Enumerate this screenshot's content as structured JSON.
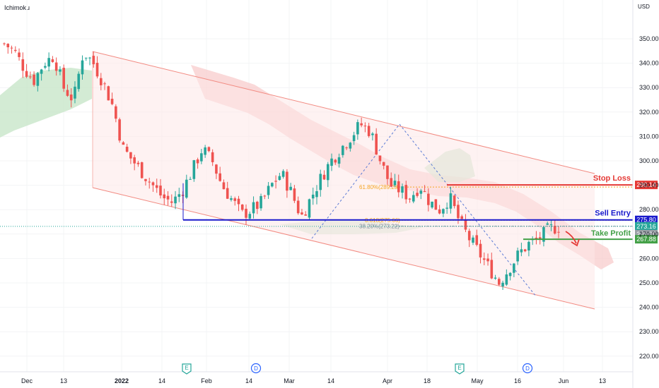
{
  "indicator_title": "Ichimoku",
  "currency": "USD",
  "chart_data": {
    "type": "candlestick",
    "title": "",
    "y_axis": {
      "ticks": [
        350,
        340,
        330,
        320,
        310,
        300,
        290,
        280,
        270,
        260,
        250,
        240,
        230,
        220
      ],
      "unit": "USD"
    },
    "x_axis": {
      "tick_labels": [
        "Dec",
        "13",
        "2022",
        "14",
        "Feb",
        "14",
        "Mar",
        "14",
        "Apr",
        "18",
        "May",
        "16",
        "Jun",
        "13"
      ]
    },
    "levels": {
      "stop_loss": {
        "label": "Stop Loss",
        "value": 290.14,
        "price_text": "290.14",
        "color": "#e53935"
      },
      "sell_entry": {
        "label": "Sell Entry",
        "value": 275.8,
        "price_text": "275.80",
        "color": "#1a1acc"
      },
      "take_profit": {
        "label": "Take Profit",
        "value": 267.88,
        "price_text": "267.88",
        "color": "#43a047"
      },
      "current_price": {
        "value": 273.16,
        "price_text": "273.16",
        "color": "#26a69a"
      },
      "price_grey": {
        "price_text": "270.00"
      }
    },
    "fibonacci": [
      {
        "label": "61.80%(289.28)",
        "value": 289.28
      },
      {
        "label": "0.618(275.66)",
        "value": 275.66
      },
      {
        "label": "38.20%(273.22)",
        "value": 273.22
      }
    ],
    "channel": {
      "upper": [
        [
          "Dec 29",
          343
        ],
        [
          "Jun 13",
          296
        ]
      ],
      "lower": [
        [
          "Dec 29",
          291
        ],
        [
          "Jun 13",
          242
        ]
      ]
    },
    "series_close_sample": [
      348,
      345,
      338,
      333,
      340,
      343,
      330,
      325,
      345,
      340,
      332,
      322,
      305,
      300,
      295,
      290,
      285,
      283,
      288,
      296,
      305,
      300,
      290,
      284,
      278,
      280,
      283,
      290,
      295,
      287,
      277,
      285,
      293,
      300,
      305,
      310,
      315,
      312,
      300,
      290,
      288,
      285,
      290,
      283,
      280,
      285,
      275,
      268,
      262,
      256,
      250,
      256,
      262,
      266,
      268,
      272,
      273
    ],
    "events": [
      {
        "label": "E",
        "kind": "earnings"
      },
      {
        "label": "D",
        "kind": "dividend"
      },
      {
        "label": "E",
        "kind": "earnings"
      },
      {
        "label": "D",
        "kind": "dividend"
      }
    ],
    "colors": {
      "up": "#26a69a",
      "down": "#ef5350",
      "channel": "#f28b82",
      "cloud_bear": "#f8c9c9",
      "cloud_bull": "#c8e6c9"
    }
  }
}
